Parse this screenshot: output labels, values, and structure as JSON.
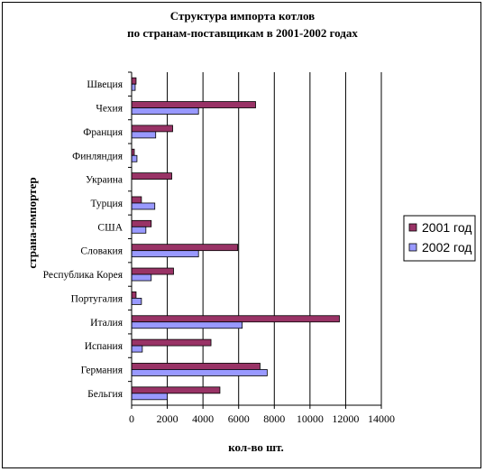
{
  "chart_data": {
    "type": "bar",
    "orientation": "horizontal",
    "title": "Структура импорта котлов",
    "subtitle": "по странам-поставщикам в 2001-2002 годах",
    "xlabel": "кол-во шт.",
    "ylabel": "страна-импортер",
    "xlim": [
      0,
      14000
    ],
    "xticks": [
      "0",
      "2000",
      "4000",
      "6000",
      "8000",
      "10000",
      "12000",
      "14000"
    ],
    "grid": true,
    "legend_position": "right",
    "categories": [
      "Швеция",
      "Чехия",
      "Франция",
      "Финляндия",
      "Украина",
      "Турция",
      "США",
      "Словакия",
      "Республика Корея",
      "Португалия",
      "Италия",
      "Испания",
      "Германия",
      "Бельгия"
    ],
    "series": [
      {
        "name": "2001 год",
        "color": "#993366",
        "values": [
          250,
          6950,
          2300,
          150,
          2250,
          550,
          1100,
          5950,
          2350,
          250,
          11650,
          4450,
          7200,
          4950
        ]
      },
      {
        "name": "2002 год",
        "color": "#9999ff",
        "values": [
          200,
          3750,
          1350,
          300,
          0,
          1300,
          800,
          3750,
          1100,
          550,
          6200,
          600,
          7600,
          2000
        ]
      }
    ]
  }
}
